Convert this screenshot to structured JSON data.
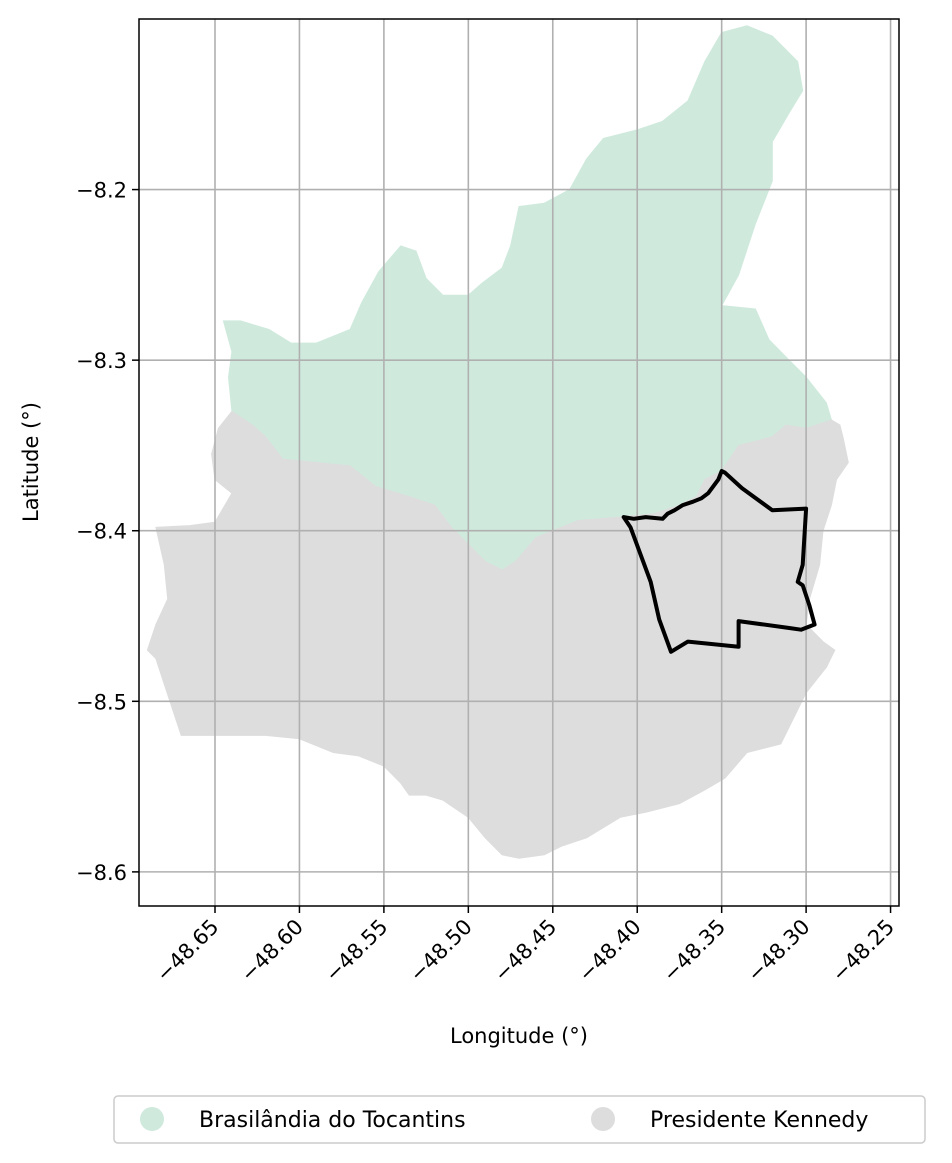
{
  "map": {
    "xlabel": "Longitude (°)",
    "ylabel": "Latitude (°)",
    "xlim": [
      -48.695,
      -48.245
    ],
    "ylim": [
      -8.62,
      -8.1
    ],
    "grid": true,
    "x_ticks": [
      {
        "value": -48.65,
        "label": "−48.65"
      },
      {
        "value": -48.6,
        "label": "−48.60"
      },
      {
        "value": -48.55,
        "label": "−48.55"
      },
      {
        "value": -48.5,
        "label": "−48.50"
      },
      {
        "value": -48.45,
        "label": "−48.45"
      },
      {
        "value": -48.4,
        "label": "−48.40"
      },
      {
        "value": -48.35,
        "label": "−48.35"
      },
      {
        "value": -48.3,
        "label": "−48.30"
      },
      {
        "value": -48.25,
        "label": "−48.25"
      }
    ],
    "y_ticks": [
      {
        "value": -8.2,
        "label": "−8.2"
      },
      {
        "value": -8.3,
        "label": "−8.3"
      },
      {
        "value": -8.4,
        "label": "−8.4"
      },
      {
        "value": -8.5,
        "label": "−8.5"
      },
      {
        "value": -8.6,
        "label": "−8.6"
      }
    ],
    "regions": [
      {
        "name": "Brasilândia do Tocantins",
        "color": "#cfeadd",
        "coords": [
          [
            -48.635,
            -8.277
          ],
          [
            -48.618,
            -8.282
          ],
          [
            -48.605,
            -8.29
          ],
          [
            -48.59,
            -8.29
          ],
          [
            -48.57,
            -8.282
          ],
          [
            -48.563,
            -8.266
          ],
          [
            -48.553,
            -8.248
          ],
          [
            -48.54,
            -8.233
          ],
          [
            -48.531,
            -8.236
          ],
          [
            -48.525,
            -8.252
          ],
          [
            -48.515,
            -8.262
          ],
          [
            -48.5,
            -8.262
          ],
          [
            -48.492,
            -8.255
          ],
          [
            -48.48,
            -8.246
          ],
          [
            -48.475,
            -8.233
          ],
          [
            -48.47,
            -8.21
          ],
          [
            -48.455,
            -8.208
          ],
          [
            -48.44,
            -8.2
          ],
          [
            -48.43,
            -8.182
          ],
          [
            -48.42,
            -8.17
          ],
          [
            -48.4,
            -8.165
          ],
          [
            -48.385,
            -8.16
          ],
          [
            -48.37,
            -8.148
          ],
          [
            -48.36,
            -8.125
          ],
          [
            -48.35,
            -8.108
          ],
          [
            -48.335,
            -8.104
          ],
          [
            -48.32,
            -8.11
          ],
          [
            -48.305,
            -8.125
          ],
          [
            -48.302,
            -8.142
          ],
          [
            -48.31,
            -8.155
          ],
          [
            -48.32,
            -8.172
          ],
          [
            -48.32,
            -8.195
          ],
          [
            -48.33,
            -8.22
          ],
          [
            -48.34,
            -8.25
          ],
          [
            -48.35,
            -8.268
          ],
          [
            -48.33,
            -8.27
          ],
          [
            -48.322,
            -8.288
          ],
          [
            -48.31,
            -8.3
          ],
          [
            -48.3,
            -8.31
          ],
          [
            -48.288,
            -8.325
          ],
          [
            -48.285,
            -8.335
          ],
          [
            -48.3,
            -8.34
          ],
          [
            -48.312,
            -8.338
          ],
          [
            -48.32,
            -8.345
          ],
          [
            -48.34,
            -8.35
          ],
          [
            -48.35,
            -8.365
          ],
          [
            -48.36,
            -8.37
          ],
          [
            -48.365,
            -8.38
          ],
          [
            -48.375,
            -8.385
          ],
          [
            -48.39,
            -8.39
          ],
          [
            -48.41,
            -8.392
          ],
          [
            -48.435,
            -8.394
          ],
          [
            -48.45,
            -8.4
          ],
          [
            -48.46,
            -8.404
          ],
          [
            -48.472,
            -8.418
          ],
          [
            -48.48,
            -8.423
          ],
          [
            -48.49,
            -8.418
          ],
          [
            -48.5,
            -8.408
          ],
          [
            -48.51,
            -8.398
          ],
          [
            -48.52,
            -8.385
          ],
          [
            -48.535,
            -8.38
          ],
          [
            -48.555,
            -8.374
          ],
          [
            -48.57,
            -8.362
          ],
          [
            -48.59,
            -8.36
          ],
          [
            -48.61,
            -8.358
          ],
          [
            -48.62,
            -8.345
          ],
          [
            -48.628,
            -8.338
          ],
          [
            -48.64,
            -8.33
          ],
          [
            -48.642,
            -8.31
          ],
          [
            -48.64,
            -8.295
          ],
          [
            -48.645,
            -8.277
          ]
        ]
      },
      {
        "name": "Presidente Kennedy",
        "color": "#dddddd",
        "coords": [
          [
            -48.64,
            -8.33
          ],
          [
            -48.628,
            -8.338
          ],
          [
            -48.62,
            -8.345
          ],
          [
            -48.61,
            -8.358
          ],
          [
            -48.59,
            -8.36
          ],
          [
            -48.57,
            -8.362
          ],
          [
            -48.555,
            -8.374
          ],
          [
            -48.535,
            -8.38
          ],
          [
            -48.52,
            -8.385
          ],
          [
            -48.51,
            -8.398
          ],
          [
            -48.5,
            -8.408
          ],
          [
            -48.49,
            -8.418
          ],
          [
            -48.48,
            -8.423
          ],
          [
            -48.472,
            -8.418
          ],
          [
            -48.46,
            -8.404
          ],
          [
            -48.45,
            -8.4
          ],
          [
            -48.435,
            -8.394
          ],
          [
            -48.41,
            -8.392
          ],
          [
            -48.39,
            -8.39
          ],
          [
            -48.375,
            -8.385
          ],
          [
            -48.365,
            -8.38
          ],
          [
            -48.36,
            -8.37
          ],
          [
            -48.35,
            -8.365
          ],
          [
            -48.34,
            -8.35
          ],
          [
            -48.32,
            -8.345
          ],
          [
            -48.312,
            -8.338
          ],
          [
            -48.3,
            -8.34
          ],
          [
            -48.285,
            -8.335
          ],
          [
            -48.28,
            -8.338
          ],
          [
            -48.278,
            -8.346
          ],
          [
            -48.275,
            -8.36
          ],
          [
            -48.282,
            -8.37
          ],
          [
            -48.285,
            -8.385
          ],
          [
            -48.29,
            -8.4
          ],
          [
            -48.292,
            -8.42
          ],
          [
            -48.298,
            -8.44
          ],
          [
            -48.3,
            -8.455
          ],
          [
            -48.29,
            -8.465
          ],
          [
            -48.283,
            -8.47
          ],
          [
            -48.288,
            -8.48
          ],
          [
            -48.3,
            -8.495
          ],
          [
            -48.305,
            -8.505
          ],
          [
            -48.315,
            -8.525
          ],
          [
            -48.335,
            -8.53
          ],
          [
            -48.348,
            -8.545
          ],
          [
            -48.36,
            -8.552
          ],
          [
            -48.375,
            -8.56
          ],
          [
            -48.395,
            -8.565
          ],
          [
            -48.41,
            -8.568
          ],
          [
            -48.43,
            -8.58
          ],
          [
            -48.445,
            -8.585
          ],
          [
            -48.455,
            -8.59
          ],
          [
            -48.47,
            -8.592
          ],
          [
            -48.48,
            -8.59
          ],
          [
            -48.49,
            -8.58
          ],
          [
            -48.5,
            -8.568
          ],
          [
            -48.515,
            -8.558
          ],
          [
            -48.525,
            -8.555
          ],
          [
            -48.535,
            -8.555
          ],
          [
            -48.54,
            -8.548
          ],
          [
            -48.55,
            -8.538
          ],
          [
            -48.565,
            -8.532
          ],
          [
            -48.58,
            -8.53
          ],
          [
            -48.6,
            -8.522
          ],
          [
            -48.62,
            -8.52
          ],
          [
            -48.645,
            -8.52
          ],
          [
            -48.67,
            -8.52
          ],
          [
            -48.68,
            -8.49
          ],
          [
            -48.685,
            -8.475
          ],
          [
            -48.69,
            -8.47
          ],
          [
            -48.685,
            -8.455
          ],
          [
            -48.678,
            -8.44
          ],
          [
            -48.68,
            -8.42
          ],
          [
            -48.685,
            -8.398
          ],
          [
            -48.665,
            -8.397
          ],
          [
            -48.65,
            -8.395
          ],
          [
            -48.64,
            -8.378
          ],
          [
            -48.65,
            -8.37
          ],
          [
            -48.652,
            -8.355
          ],
          [
            -48.648,
            -8.34
          ]
        ]
      }
    ],
    "outline": {
      "color": "#000000",
      "coords": [
        [
          -48.408,
          -8.392
        ],
        [
          -48.402,
          -8.393
        ],
        [
          -48.395,
          -8.392
        ],
        [
          -48.385,
          -8.393
        ],
        [
          -48.382,
          -8.39
        ],
        [
          -48.378,
          -8.388
        ],
        [
          -48.373,
          -8.385
        ],
        [
          -48.367,
          -8.383
        ],
        [
          -48.362,
          -8.381
        ],
        [
          -48.358,
          -8.378
        ],
        [
          -48.355,
          -8.374
        ],
        [
          -48.352,
          -8.37
        ],
        [
          -48.35,
          -8.365
        ],
        [
          -48.348,
          -8.366
        ],
        [
          -48.338,
          -8.375
        ],
        [
          -48.32,
          -8.388
        ],
        [
          -48.3,
          -8.387
        ],
        [
          -48.302,
          -8.42
        ],
        [
          -48.305,
          -8.43
        ],
        [
          -48.302,
          -8.432
        ],
        [
          -48.298,
          -8.444
        ],
        [
          -48.295,
          -8.455
        ],
        [
          -48.303,
          -8.458
        ],
        [
          -48.31,
          -8.457
        ],
        [
          -48.34,
          -8.453
        ],
        [
          -48.34,
          -8.468
        ],
        [
          -48.37,
          -8.465
        ],
        [
          -48.38,
          -8.471
        ],
        [
          -48.387,
          -8.452
        ],
        [
          -48.392,
          -8.43
        ],
        [
          -48.404,
          -8.398
        ],
        [
          -48.408,
          -8.392
        ]
      ]
    }
  },
  "legend": {
    "items": [
      {
        "label": "Brasilândia do Tocantins",
        "color": "#cfeadd"
      },
      {
        "label": "Presidente Kennedy",
        "color": "#dddddd"
      }
    ]
  }
}
